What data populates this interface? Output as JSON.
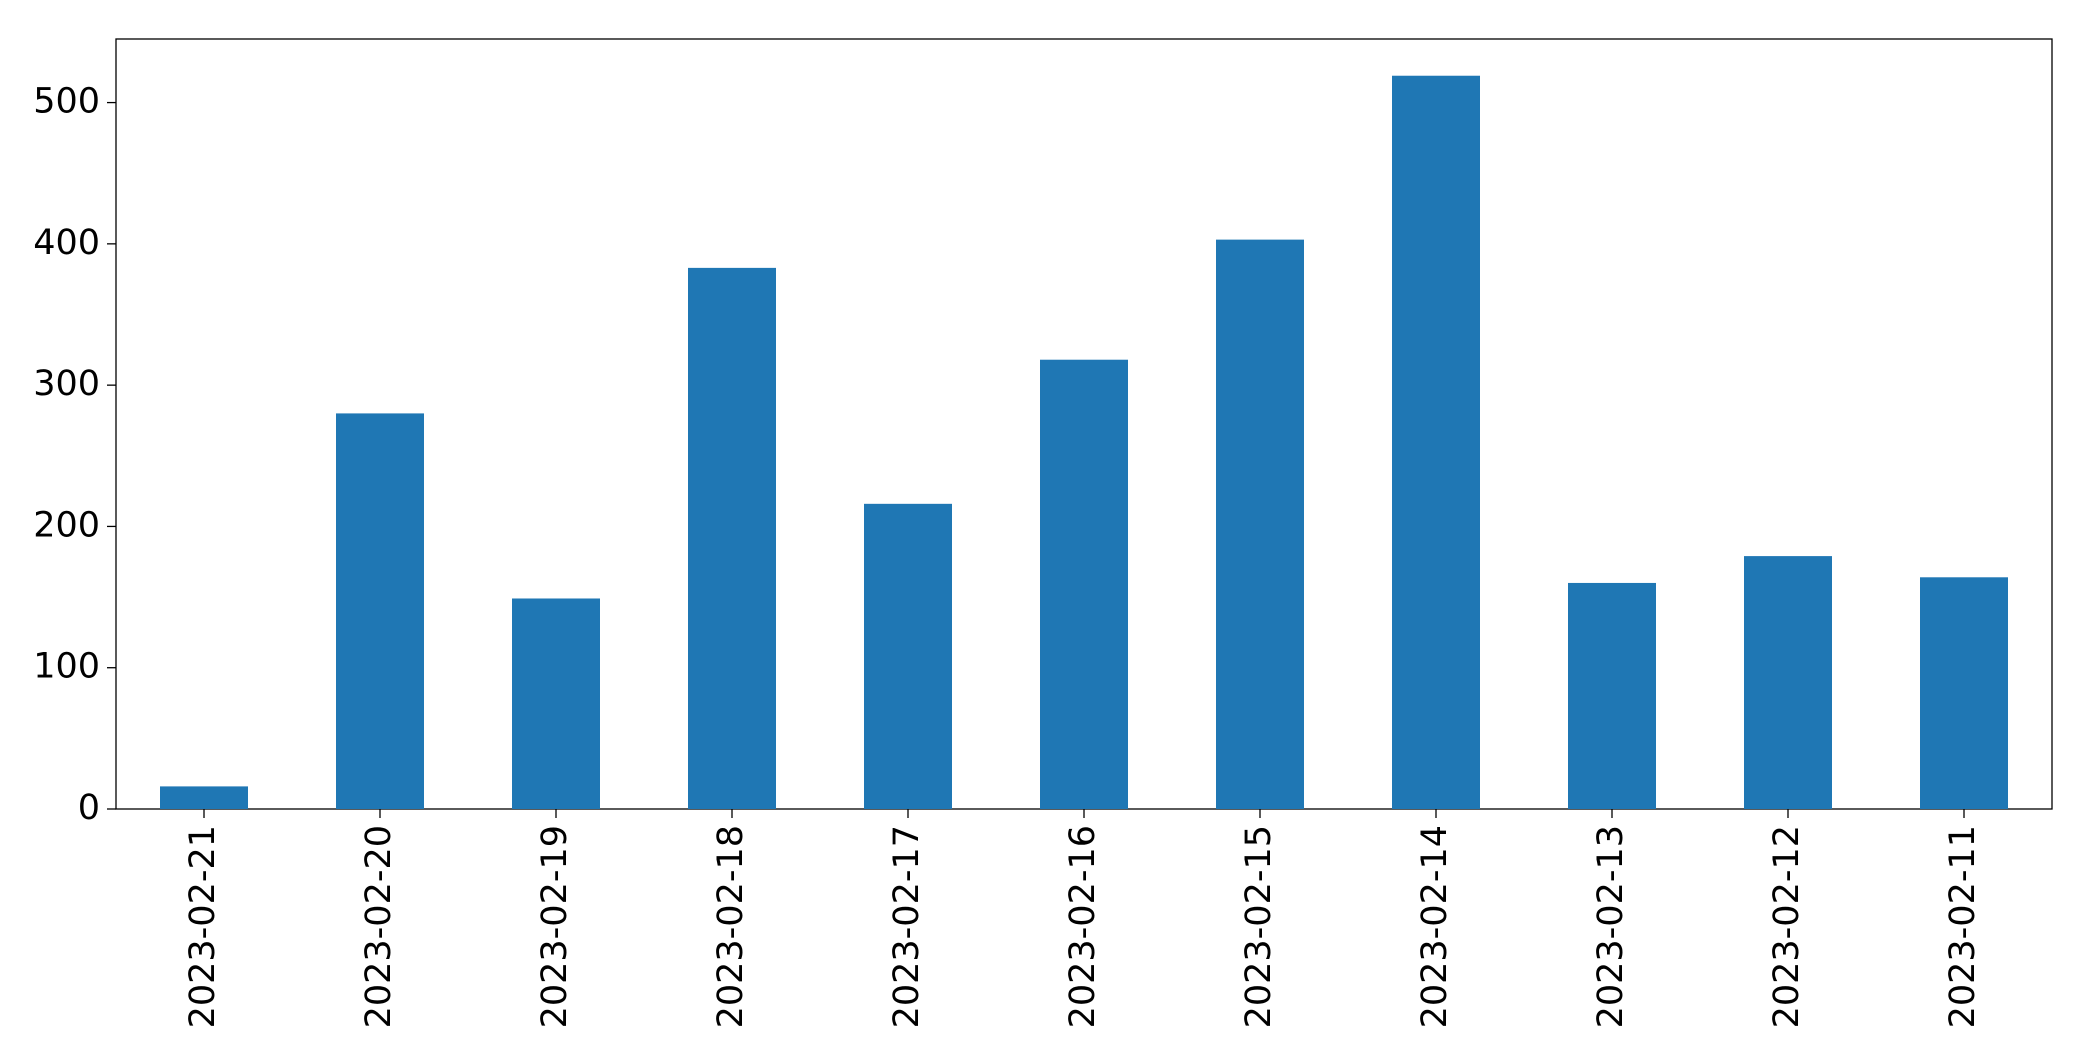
{
  "chart_data": {
    "type": "bar",
    "categories": [
      "2023-02-21",
      "2023-02-20",
      "2023-02-19",
      "2023-02-18",
      "2023-02-17",
      "2023-02-16",
      "2023-02-15",
      "2023-02-14",
      "2023-02-13",
      "2023-02-12",
      "2023-02-11"
    ],
    "values": [
      16,
      280,
      149,
      383,
      216,
      318,
      403,
      519,
      160,
      179,
      164
    ],
    "color": "#1f77b4",
    "ylim": [
      0,
      545
    ],
    "yticks": [
      0,
      100,
      200,
      300,
      400,
      500
    ],
    "grid": false
  }
}
